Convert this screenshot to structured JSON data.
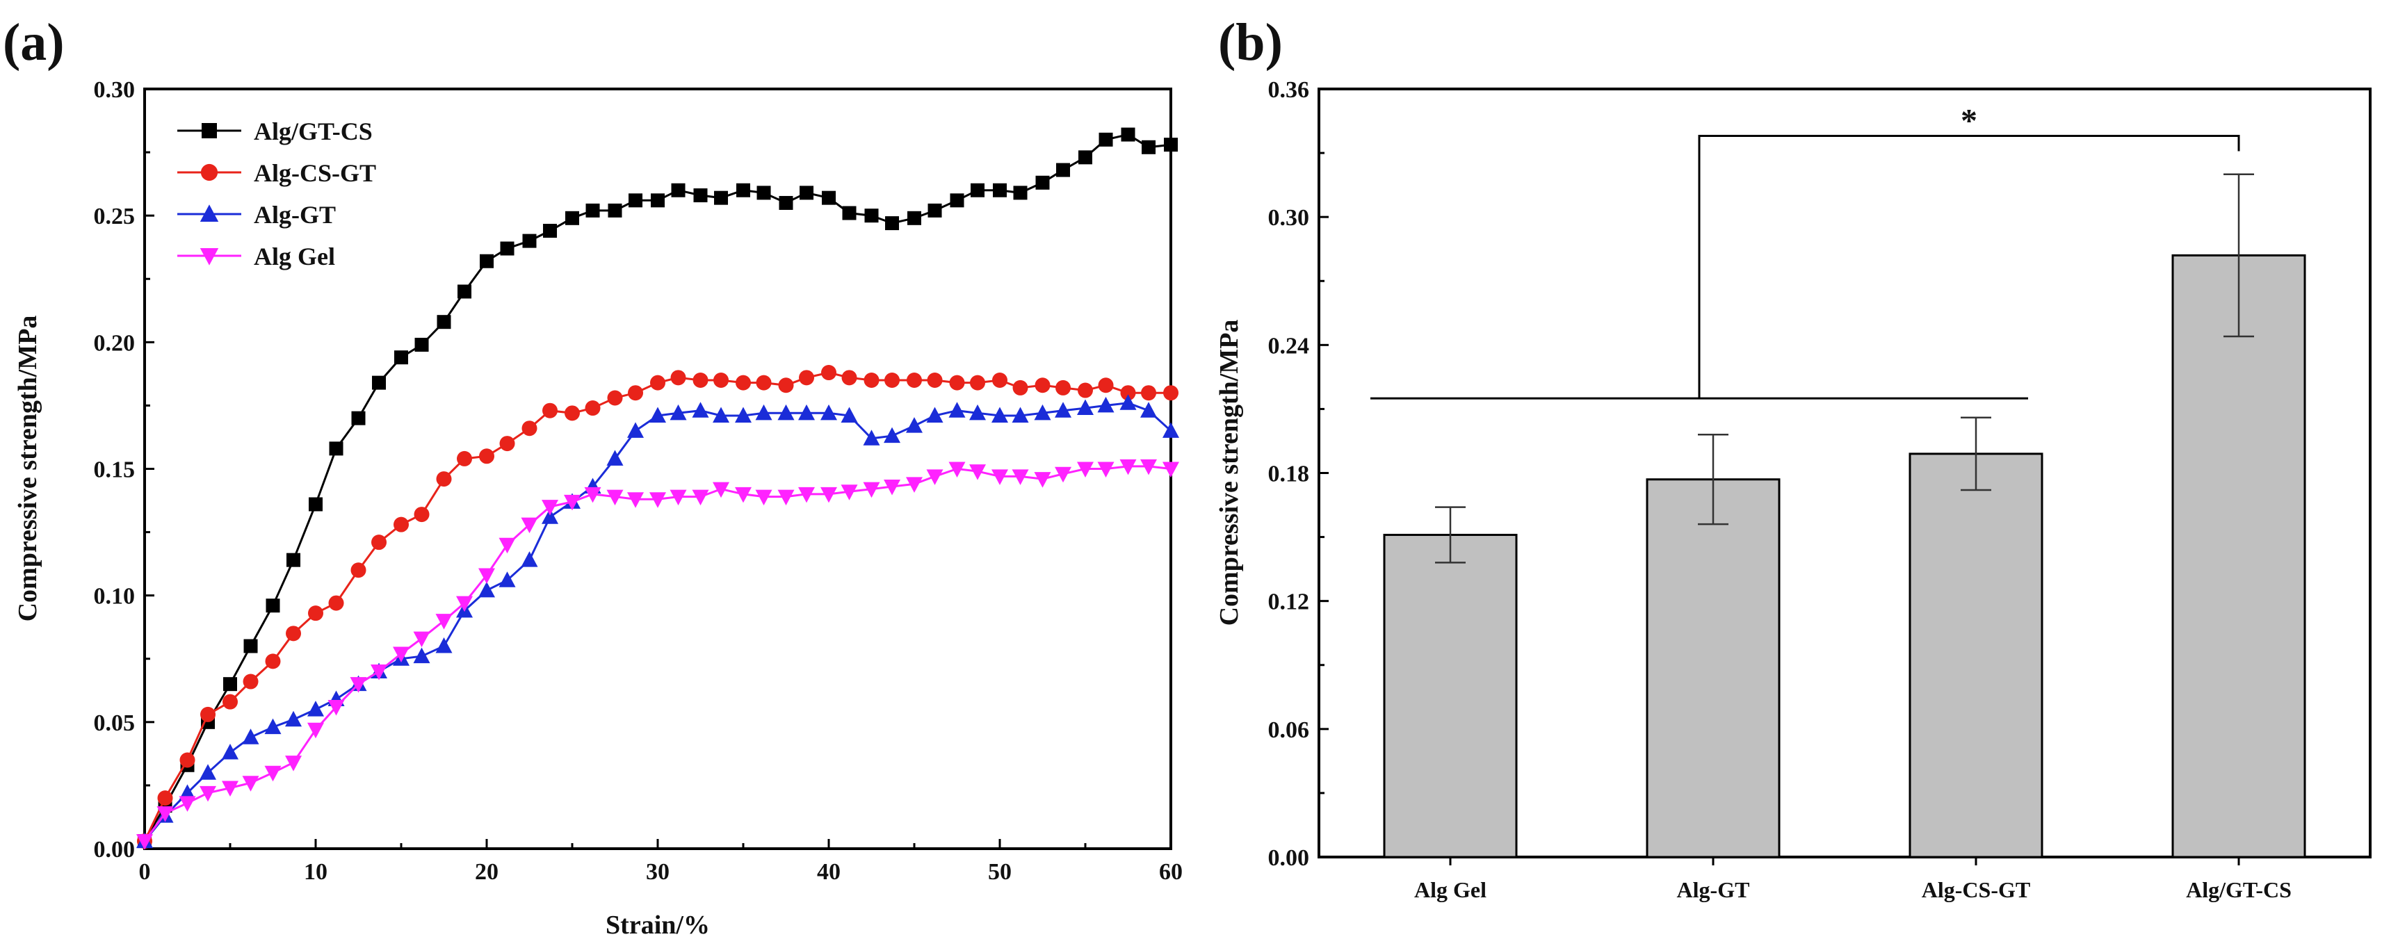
{
  "chart_data": [
    {
      "type": "line",
      "panel_label": "(a)",
      "xlabel": "Strain/%",
      "ylabel": "Compressive strength/MPa",
      "xlim": [
        0,
        60
      ],
      "ylim": [
        0,
        0.3
      ],
      "x_ticks": [
        0,
        10,
        20,
        30,
        40,
        50,
        60
      ],
      "x_tick_labels": [
        "0",
        "10",
        "20",
        "30",
        "40",
        "50",
        "60"
      ],
      "y_ticks": [
        0,
        0.05,
        0.1,
        0.15,
        0.2,
        0.25,
        0.3
      ],
      "y_tick_labels": [
        "0.00",
        "0.05",
        "0.10",
        "0.15",
        "0.20",
        "0.25",
        "0.30"
      ],
      "legend_position": "top-left",
      "series": [
        {
          "name": "Alg/GT-CS",
          "color": "#000000",
          "marker": "square",
          "x": [
            0,
            1.2,
            2.5,
            3.7,
            5,
            6.2,
            7.5,
            8.7,
            10,
            11.2,
            12.5,
            13.7,
            15,
            16.2,
            17.5,
            18.7,
            20,
            21.2,
            22.5,
            23.7,
            25,
            26.2,
            27.5,
            28.7,
            30,
            31.2,
            32.5,
            33.7,
            35,
            36.2,
            37.5,
            38.7,
            40,
            41.2,
            42.5,
            43.7,
            45,
            46.2,
            47.5,
            48.7,
            50,
            51.2,
            52.5,
            53.7,
            55,
            56.2,
            57.5,
            58.7,
            60
          ],
          "y": [
            0.003,
            0.017,
            0.033,
            0.05,
            0.065,
            0.08,
            0.096,
            0.114,
            0.136,
            0.158,
            0.17,
            0.184,
            0.194,
            0.199,
            0.208,
            0.22,
            0.232,
            0.237,
            0.24,
            0.244,
            0.249,
            0.252,
            0.252,
            0.256,
            0.256,
            0.26,
            0.258,
            0.257,
            0.26,
            0.259,
            0.255,
            0.259,
            0.257,
            0.251,
            0.25,
            0.247,
            0.249,
            0.252,
            0.256,
            0.26,
            0.26,
            0.259,
            0.263,
            0.268,
            0.273,
            0.28,
            0.282,
            0.277,
            0.278
          ]
        },
        {
          "name": "Alg-CS-GT",
          "color": "#e8231a",
          "marker": "circle",
          "x": [
            0,
            1.2,
            2.5,
            3.7,
            5,
            6.2,
            7.5,
            8.7,
            10,
            11.2,
            12.5,
            13.7,
            15,
            16.2,
            17.5,
            18.7,
            20,
            21.2,
            22.5,
            23.7,
            25,
            26.2,
            27.5,
            28.7,
            30,
            31.2,
            32.5,
            33.7,
            35,
            36.2,
            37.5,
            38.7,
            40,
            41.2,
            42.5,
            43.7,
            45,
            46.2,
            47.5,
            48.7,
            50,
            51.2,
            52.5,
            53.7,
            55,
            56.2,
            57.5,
            58.7,
            60
          ],
          "y": [
            0.003,
            0.02,
            0.035,
            0.053,
            0.058,
            0.066,
            0.074,
            0.085,
            0.093,
            0.097,
            0.11,
            0.121,
            0.128,
            0.132,
            0.146,
            0.154,
            0.155,
            0.16,
            0.166,
            0.173,
            0.172,
            0.174,
            0.178,
            0.18,
            0.184,
            0.186,
            0.185,
            0.185,
            0.184,
            0.184,
            0.183,
            0.186,
            0.188,
            0.186,
            0.185,
            0.185,
            0.185,
            0.185,
            0.184,
            0.184,
            0.185,
            0.182,
            0.183,
            0.182,
            0.181,
            0.183,
            0.18,
            0.18,
            0.18
          ]
        },
        {
          "name": "Alg-GT",
          "color": "#1a2cd8",
          "marker": "triangle-up",
          "x": [
            0,
            1.2,
            2.5,
            3.7,
            5,
            6.2,
            7.5,
            8.7,
            10,
            11.2,
            12.5,
            13.7,
            15,
            16.2,
            17.5,
            18.7,
            20,
            21.2,
            22.5,
            23.7,
            25,
            26.2,
            27.5,
            28.7,
            30,
            31.2,
            32.5,
            33.7,
            35,
            36.2,
            37.5,
            38.7,
            40,
            41.2,
            42.5,
            43.7,
            45,
            46.2,
            47.5,
            48.7,
            50,
            51.2,
            52.5,
            53.7,
            55,
            56.2,
            57.5,
            58.7,
            60
          ],
          "y": [
            0.003,
            0.013,
            0.022,
            0.03,
            0.038,
            0.044,
            0.048,
            0.051,
            0.055,
            0.059,
            0.065,
            0.07,
            0.075,
            0.076,
            0.08,
            0.094,
            0.102,
            0.106,
            0.114,
            0.131,
            0.137,
            0.143,
            0.154,
            0.165,
            0.171,
            0.172,
            0.173,
            0.171,
            0.171,
            0.172,
            0.172,
            0.172,
            0.172,
            0.171,
            0.162,
            0.163,
            0.167,
            0.171,
            0.173,
            0.172,
            0.171,
            0.171,
            0.172,
            0.173,
            0.174,
            0.175,
            0.176,
            0.173,
            0.165
          ]
        },
        {
          "name": "Alg Gel",
          "color": "#ff22ff",
          "marker": "triangle-down",
          "x": [
            0,
            1.2,
            2.5,
            3.7,
            5,
            6.2,
            7.5,
            8.7,
            10,
            11.2,
            12.5,
            13.7,
            15,
            16.2,
            17.5,
            18.7,
            20,
            21.2,
            22.5,
            23.7,
            25,
            26.2,
            27.5,
            28.7,
            30,
            31.2,
            32.5,
            33.7,
            35,
            36.2,
            37.5,
            38.7,
            40,
            41.2,
            42.5,
            43.7,
            45,
            46.2,
            47.5,
            48.7,
            50,
            51.2,
            52.5,
            53.7,
            55,
            56.2,
            57.5,
            58.7,
            60
          ],
          "y": [
            0.003,
            0.014,
            0.018,
            0.022,
            0.024,
            0.026,
            0.03,
            0.034,
            0.047,
            0.056,
            0.065,
            0.07,
            0.077,
            0.083,
            0.09,
            0.097,
            0.108,
            0.12,
            0.128,
            0.135,
            0.137,
            0.14,
            0.139,
            0.138,
            0.138,
            0.139,
            0.139,
            0.142,
            0.14,
            0.139,
            0.139,
            0.14,
            0.14,
            0.141,
            0.142,
            0.143,
            0.144,
            0.147,
            0.15,
            0.149,
            0.147,
            0.147,
            0.146,
            0.148,
            0.15,
            0.15,
            0.151,
            0.151,
            0.15
          ]
        }
      ]
    },
    {
      "type": "bar",
      "panel_label": "(b)",
      "xlabel": "",
      "ylabel": "Compressive strength/MPa",
      "categories": [
        "Alg Gel",
        "Alg-GT",
        "Alg-CS-GT",
        "Alg/GT-CS"
      ],
      "values": [
        0.151,
        0.177,
        0.189,
        0.282
      ],
      "errors": [
        0.013,
        0.021,
        0.017,
        0.038
      ],
      "ylim": [
        0,
        0.36
      ],
      "y_ticks": [
        0,
        0.06,
        0.12,
        0.18,
        0.24,
        0.3,
        0.36
      ],
      "y_tick_labels": [
        "0.00",
        "0.06",
        "0.12",
        "0.18",
        "0.24",
        "0.30",
        "0.36"
      ],
      "bar_color": "#c0c0c0",
      "significance": {
        "label": "*",
        "group_from": 0,
        "group_to": 2,
        "target": 3,
        "group_line_y": 0.215,
        "bracket_y": 0.338
      }
    }
  ]
}
